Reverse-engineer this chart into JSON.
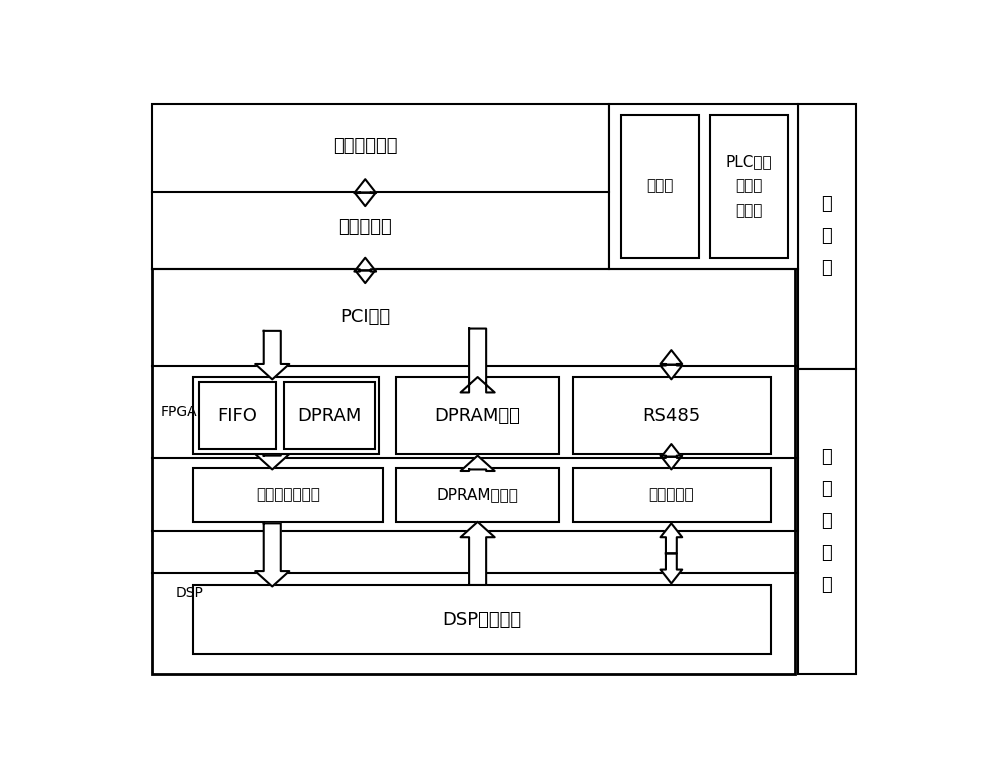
{
  "bg_color": "#ffffff",
  "line_color": "#000000",
  "labels": {
    "user_app": "用户应用软件",
    "interface_lib": "接口函数库",
    "pci_driver": "PCI驱动",
    "touchscreen": "触摸屏",
    "plc_tool": "PLC编译\n仿真工\n具软件",
    "upper_machine": "上\n位\n机",
    "fifo": "FIFO",
    "dpram": "DPRAM",
    "dpram_channel": "DPRAM通道",
    "rs485": "RS485",
    "fpga_label": "FPGA",
    "ring_buffer": "环形队列缓冲区",
    "dpram_buffer": "DPRAM缓冲区",
    "serial_buffer": "串口缓冲区",
    "dsp_label": "DSP",
    "dsp_program": "DSP处理程序",
    "motion_ctrl": "运\n动\n控\n制\n卡"
  }
}
